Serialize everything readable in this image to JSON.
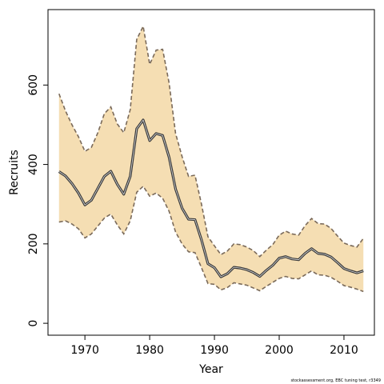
{
  "chart_data": {
    "type": "line",
    "xlabel": "Year",
    "ylabel": "Recruits",
    "xlim": [
      1964.3,
      2014.7
    ],
    "ylim": [
      -30,
      790
    ],
    "xticks": [
      1970,
      1980,
      1990,
      2000,
      2010
    ],
    "yticks": [
      0,
      200,
      400,
      600
    ],
    "grid": false,
    "colors": {
      "band": "#f5deb3",
      "bound_line": "#7a6a5a",
      "median_line": "#3a3a3a",
      "median_inner": "#dddddd"
    },
    "x": [
      1966,
      1967,
      1968,
      1969,
      1970,
      1971,
      1972,
      1973,
      1974,
      1975,
      1976,
      1977,
      1978,
      1979,
      1980,
      1981,
      1982,
      1983,
      1984,
      1985,
      1986,
      1987,
      1988,
      1989,
      1990,
      1991,
      1992,
      1993,
      1994,
      1995,
      1996,
      1997,
      1998,
      1999,
      2000,
      2001,
      2002,
      2003,
      2004,
      2005,
      2006,
      2007,
      2008,
      2009,
      2010,
      2011,
      2012,
      2013
    ],
    "series": [
      {
        "role": "median",
        "values": [
          382,
          371,
          352,
          328,
          298,
          310,
          340,
          370,
          383,
          350,
          325,
          370,
          490,
          512,
          460,
          478,
          473,
          418,
          338,
          290,
          262,
          261,
          210,
          150,
          140,
          117,
          125,
          141,
          139,
          135,
          128,
          118,
          133,
          146,
          164,
          168,
          162,
          160,
          176,
          188,
          176,
          174,
          167,
          153,
          138,
          132,
          127,
          132
        ]
      },
      {
        "role": "upper",
        "values": [
          578,
          535,
          500,
          470,
          433,
          443,
          480,
          528,
          545,
          502,
          480,
          538,
          715,
          748,
          652,
          688,
          690,
          605,
          478,
          420,
          370,
          373,
          300,
          218,
          195,
          173,
          182,
          200,
          198,
          192,
          183,
          168,
          184,
          198,
          222,
          232,
          225,
          222,
          246,
          264,
          251,
          250,
          239,
          220,
          202,
          196,
          192,
          214
        ]
      },
      {
        "role": "lower",
        "values": [
          255,
          258,
          250,
          238,
          215,
          225,
          245,
          265,
          275,
          248,
          225,
          258,
          330,
          345,
          320,
          328,
          315,
          282,
          230,
          200,
          180,
          178,
          140,
          100,
          98,
          84,
          90,
          102,
          99,
          96,
          89,
          82,
          93,
          103,
          113,
          118,
          113,
          112,
          122,
          132,
          122,
          121,
          116,
          106,
          95,
          91,
          86,
          80
        ]
      }
    ],
    "footnote": "stockassessment.org, EBC tuning test, r3349"
  }
}
